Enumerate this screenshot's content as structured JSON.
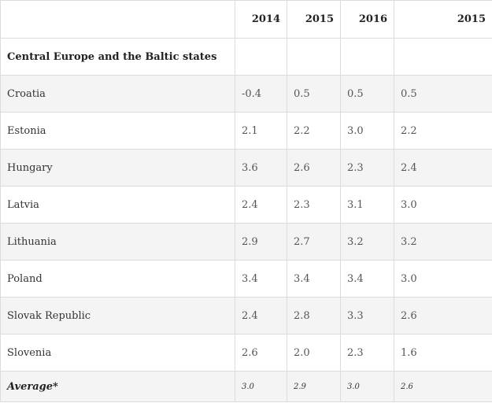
{
  "table": {
    "headers": [
      "",
      "2014",
      "2015",
      "2016",
      "2015"
    ],
    "section_title": "Central Europe and the Baltic states",
    "rows": [
      {
        "country": "Croatia",
        "values": [
          "-0.4",
          "0.5",
          "0.5",
          "0.5"
        ]
      },
      {
        "country": "Estonia",
        "values": [
          "2.1",
          "2.2",
          "3.0",
          "2.2"
        ]
      },
      {
        "country": "Hungary",
        "values": [
          "3.6",
          "2.6",
          "2.3",
          "2.4"
        ]
      },
      {
        "country": "Latvia",
        "values": [
          "2.4",
          "2.3",
          "3.1",
          "3.0"
        ]
      },
      {
        "country": "Lithuania",
        "values": [
          "2.9",
          "2.7",
          "3.2",
          "3.2"
        ]
      },
      {
        "country": "Poland",
        "values": [
          "3.4",
          "3.4",
          "3.4",
          "3.0"
        ]
      },
      {
        "country": "Slovak Republic",
        "values": [
          "2.4",
          "2.8",
          "3.3",
          "2.6"
        ]
      },
      {
        "country": "Slovenia",
        "values": [
          "2.6",
          "2.0",
          "2.3",
          "1.6"
        ]
      }
    ],
    "average": {
      "label": "Average*",
      "values": [
        "3.0",
        "2.9",
        "3.0",
        "2.6"
      ]
    }
  }
}
